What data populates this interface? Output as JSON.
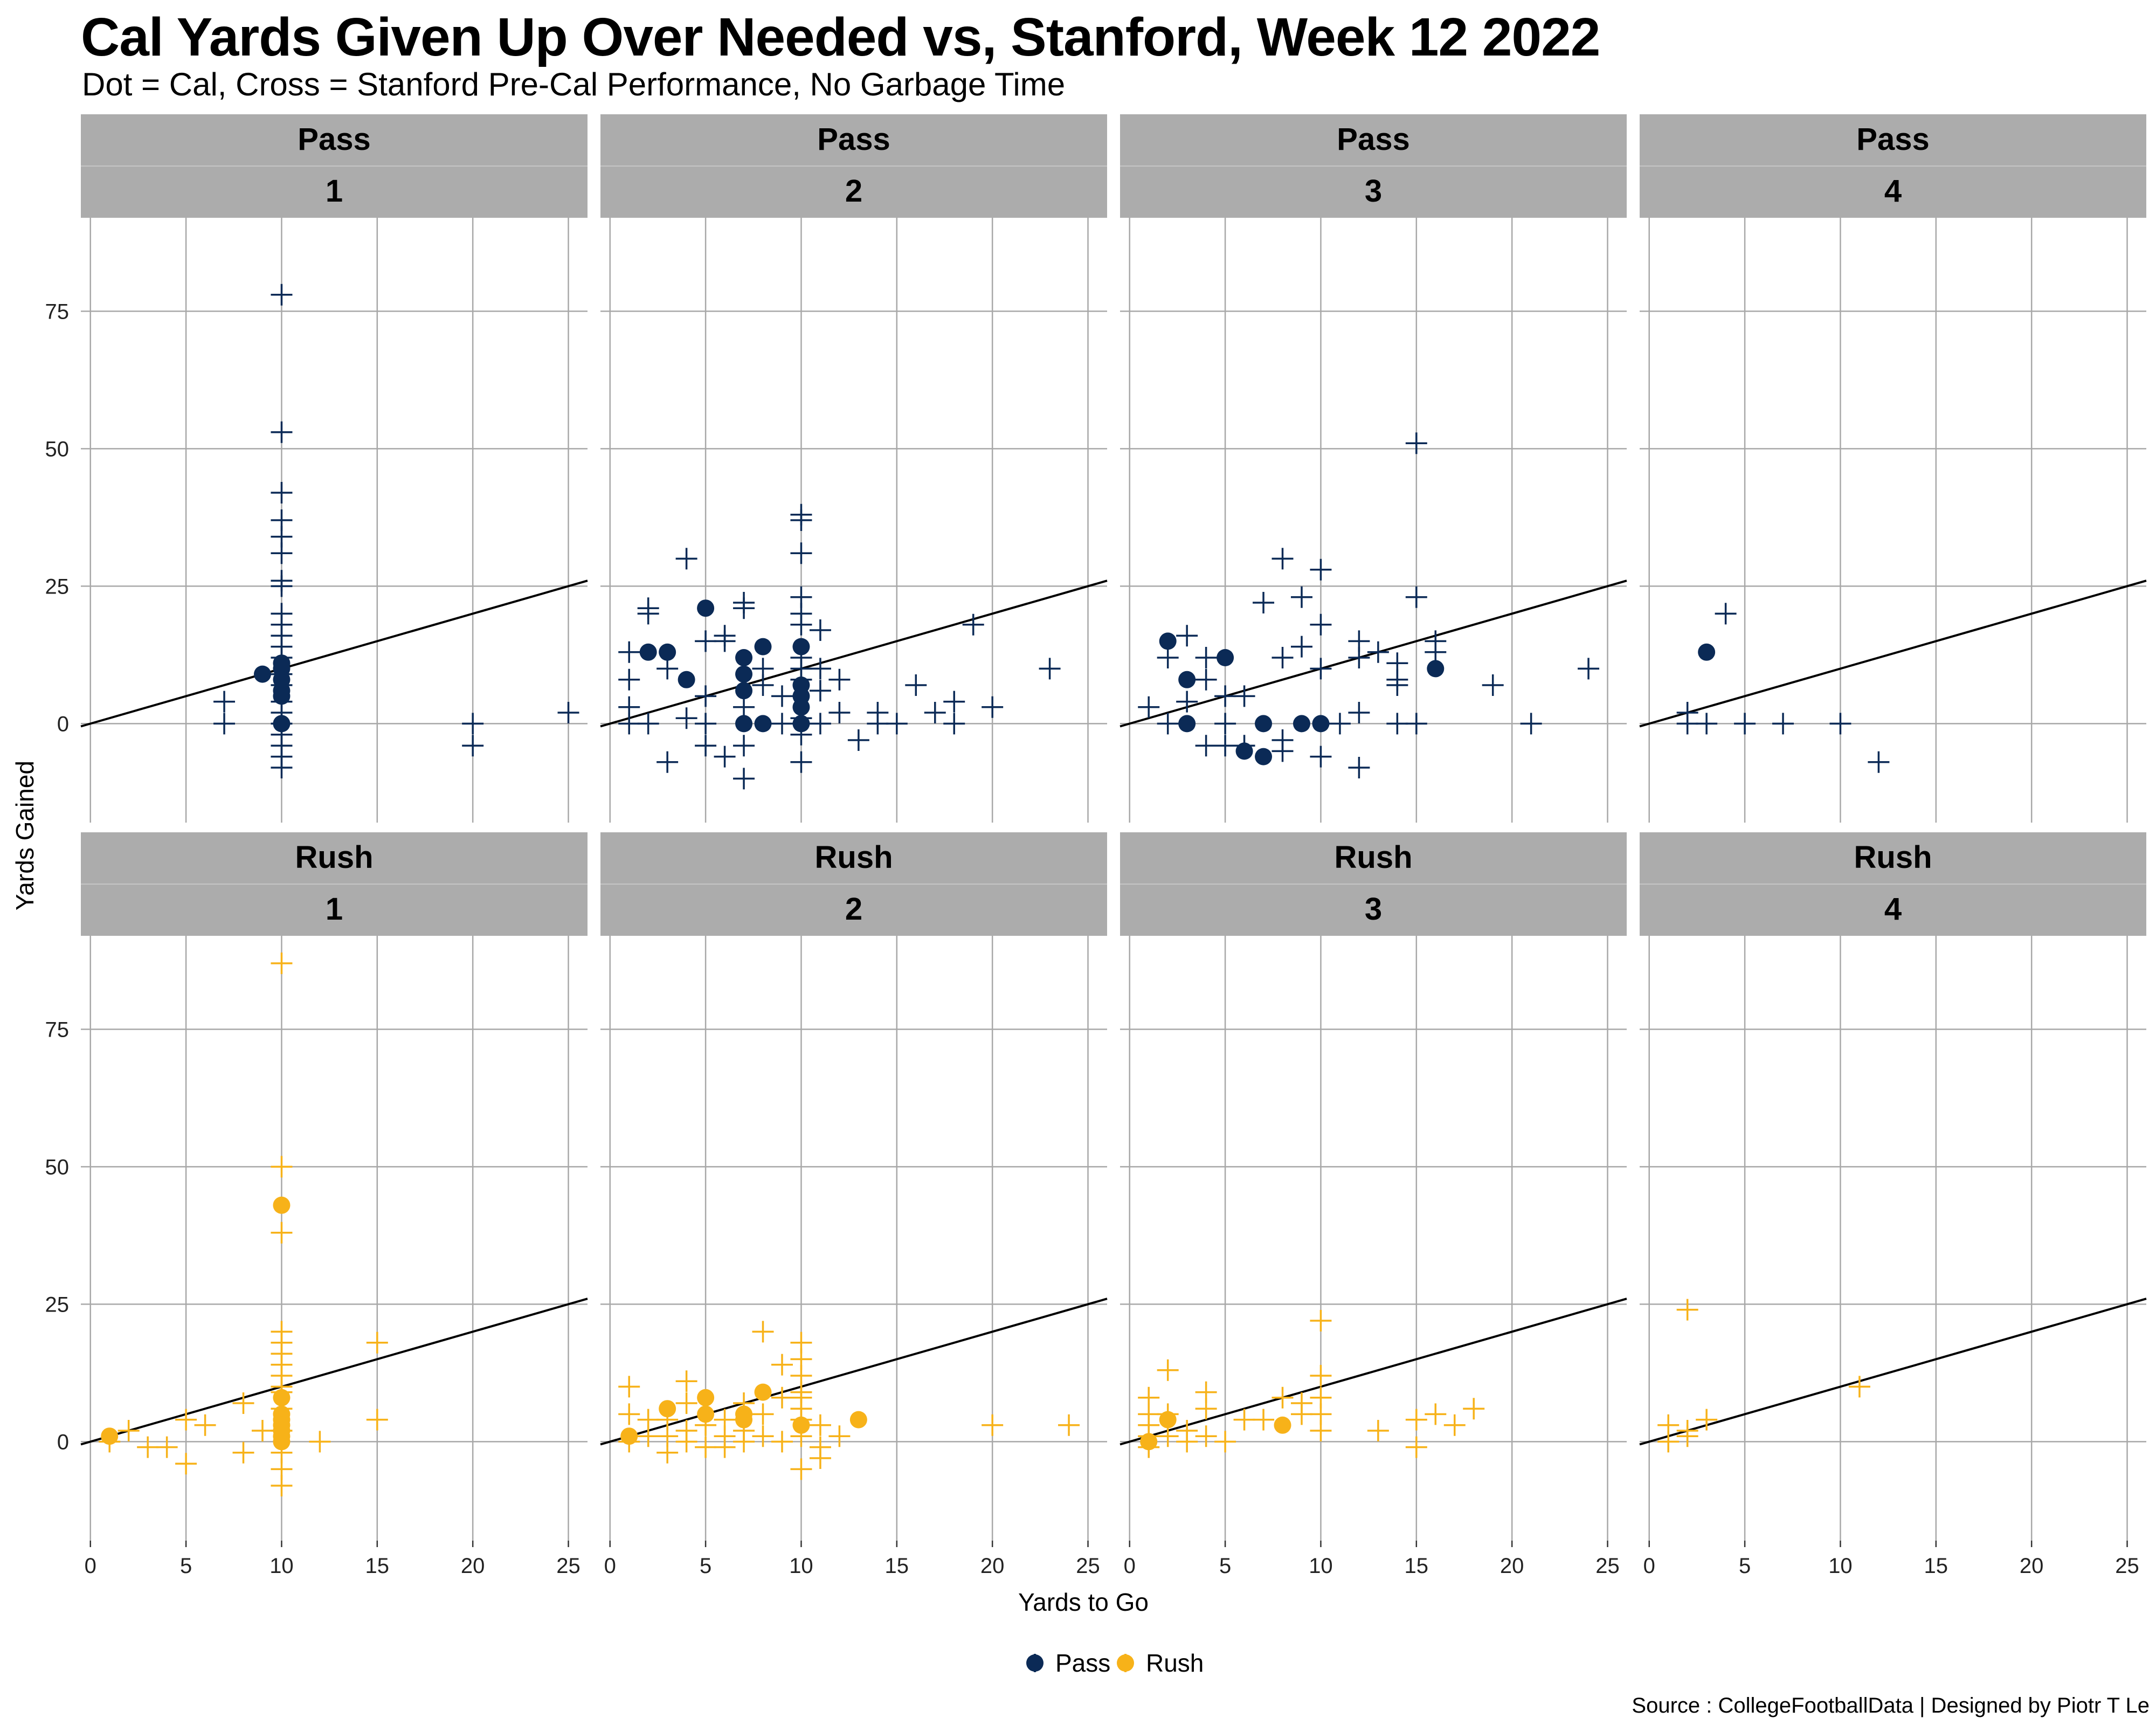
{
  "title": "Cal Yards Given Up Over Needed vs, Stanford, Week 12 2022",
  "subtitle": "Dot = Cal, Cross = Stanford Pre-Cal Performance, No Garbage Time",
  "source": "Source : CollegeFootballData | Designed by Piotr T Le",
  "colors": {
    "pass": "#0b2a56",
    "rush": "#f7b219",
    "strip": "#acacac",
    "grid": "#a8a8a8",
    "refline": "#000000"
  },
  "chart_data": {
    "type": "scatter",
    "facets": [
      "play type",
      "down"
    ],
    "xlabel": "Yards to Go",
    "ylabel": "Yards Gained",
    "xlim": [
      -0.5,
      26
    ],
    "ylim": [
      -18,
      92
    ],
    "xticks": [
      0,
      5,
      10,
      15,
      20,
      25
    ],
    "yticks": [
      0,
      25,
      50,
      75
    ],
    "reference_line": "y = x",
    "legend": {
      "position": "bottom",
      "items": [
        {
          "key": "pass",
          "label": "Pass"
        },
        {
          "key": "rush",
          "label": "Rush"
        }
      ]
    },
    "panels": [
      {
        "type": "Pass",
        "key": "pass",
        "down": "1",
        "cal": [
          [
            9,
            9
          ],
          [
            10,
            11
          ],
          [
            10,
            10
          ],
          [
            10,
            8
          ],
          [
            10,
            6
          ],
          [
            10,
            5
          ],
          [
            10,
            0
          ]
        ],
        "stanford": [
          [
            7,
            4
          ],
          [
            7,
            0
          ],
          [
            10,
            78
          ],
          [
            10,
            53
          ],
          [
            10,
            42
          ],
          [
            10,
            37
          ],
          [
            10,
            34
          ],
          [
            10,
            31
          ],
          [
            10,
            26
          ],
          [
            10,
            25
          ],
          [
            10,
            20
          ],
          [
            10,
            18
          ],
          [
            10,
            16
          ],
          [
            10,
            14
          ],
          [
            10,
            12
          ],
          [
            10,
            9
          ],
          [
            10,
            7
          ],
          [
            10,
            4
          ],
          [
            10,
            2
          ],
          [
            10,
            0
          ],
          [
            10,
            -2
          ],
          [
            10,
            -4
          ],
          [
            10,
            -6
          ],
          [
            10,
            -8
          ],
          [
            20,
            0
          ],
          [
            20,
            -4
          ],
          [
            25,
            2
          ]
        ]
      },
      {
        "type": "Pass",
        "key": "pass",
        "down": "2",
        "cal": [
          [
            2,
            13
          ],
          [
            3,
            13
          ],
          [
            4,
            8
          ],
          [
            5,
            21
          ],
          [
            7,
            12
          ],
          [
            7,
            9
          ],
          [
            7,
            6
          ],
          [
            7,
            0
          ],
          [
            8,
            14
          ],
          [
            8,
            0
          ],
          [
            10,
            14
          ],
          [
            10,
            7
          ],
          [
            10,
            5
          ],
          [
            10,
            3
          ],
          [
            10,
            0
          ]
        ],
        "stanford": [
          [
            1,
            13
          ],
          [
            1,
            8
          ],
          [
            1,
            3
          ],
          [
            1,
            0
          ],
          [
            2,
            21
          ],
          [
            2,
            20
          ],
          [
            2,
            0
          ],
          [
            3,
            -7
          ],
          [
            3,
            10
          ],
          [
            4,
            30
          ],
          [
            4,
            1
          ],
          [
            5,
            15
          ],
          [
            5,
            5
          ],
          [
            5,
            0
          ],
          [
            5,
            -4
          ],
          [
            6,
            16
          ],
          [
            6,
            15
          ],
          [
            6,
            -6
          ],
          [
            7,
            22
          ],
          [
            7,
            21
          ],
          [
            7,
            3
          ],
          [
            7,
            -10
          ],
          [
            7,
            -4
          ],
          [
            8,
            10
          ],
          [
            8,
            7
          ],
          [
            9,
            5
          ],
          [
            9,
            0
          ],
          [
            10,
            38
          ],
          [
            10,
            37
          ],
          [
            10,
            31
          ],
          [
            10,
            23
          ],
          [
            10,
            20
          ],
          [
            10,
            18
          ],
          [
            10,
            12
          ],
          [
            10,
            10
          ],
          [
            10,
            8
          ],
          [
            10,
            1
          ],
          [
            10,
            -2
          ],
          [
            10,
            -7
          ],
          [
            11,
            17
          ],
          [
            11,
            10
          ],
          [
            11,
            6
          ],
          [
            11,
            0
          ],
          [
            12,
            8
          ],
          [
            12,
            2
          ],
          [
            13,
            -3
          ],
          [
            14,
            2
          ],
          [
            14,
            0
          ],
          [
            15,
            0
          ],
          [
            16,
            7
          ],
          [
            17,
            2
          ],
          [
            18,
            4
          ],
          [
            18,
            0
          ],
          [
            19,
            18
          ],
          [
            20,
            3
          ],
          [
            23,
            10
          ]
        ]
      },
      {
        "type": "Pass",
        "key": "pass",
        "down": "3",
        "cal": [
          [
            2,
            15
          ],
          [
            3,
            8
          ],
          [
            3,
            0
          ],
          [
            5,
            12
          ],
          [
            6,
            -5
          ],
          [
            7,
            0
          ],
          [
            7,
            -6
          ],
          [
            9,
            0
          ],
          [
            10,
            0
          ],
          [
            16,
            10
          ]
        ],
        "stanford": [
          [
            1,
            3
          ],
          [
            2,
            12
          ],
          [
            2,
            0
          ],
          [
            3,
            16
          ],
          [
            3,
            4
          ],
          [
            4,
            12
          ],
          [
            4,
            8
          ],
          [
            4,
            -4
          ],
          [
            5,
            5
          ],
          [
            5,
            0
          ],
          [
            5,
            -4
          ],
          [
            6,
            5
          ],
          [
            6,
            -4
          ],
          [
            7,
            22
          ],
          [
            8,
            30
          ],
          [
            8,
            12
          ],
          [
            8,
            -3
          ],
          [
            8,
            -5
          ],
          [
            9,
            23
          ],
          [
            9,
            14
          ],
          [
            10,
            28
          ],
          [
            10,
            18
          ],
          [
            10,
            10
          ],
          [
            10,
            -6
          ],
          [
            11,
            0
          ],
          [
            12,
            15
          ],
          [
            12,
            12
          ],
          [
            12,
            2
          ],
          [
            12,
            -8
          ],
          [
            13,
            13
          ],
          [
            14,
            11
          ],
          [
            14,
            8
          ],
          [
            14,
            7
          ],
          [
            14,
            0
          ],
          [
            15,
            51
          ],
          [
            15,
            23
          ],
          [
            15,
            0
          ],
          [
            16,
            15
          ],
          [
            16,
            13
          ],
          [
            19,
            7
          ],
          [
            21,
            0
          ],
          [
            24,
            10
          ]
        ]
      },
      {
        "type": "Pass",
        "key": "pass",
        "down": "4",
        "cal": [
          [
            3,
            13
          ]
        ],
        "stanford": [
          [
            2,
            2
          ],
          [
            2,
            0
          ],
          [
            3,
            0
          ],
          [
            4,
            20
          ],
          [
            5,
            0
          ],
          [
            7,
            0
          ],
          [
            10,
            0
          ],
          [
            12,
            -7
          ]
        ]
      },
      {
        "type": "Rush",
        "key": "rush",
        "down": "1",
        "cal": [
          [
            1,
            1
          ],
          [
            10,
            43
          ],
          [
            10,
            8
          ],
          [
            10,
            5
          ],
          [
            10,
            4
          ],
          [
            10,
            3
          ],
          [
            10,
            2
          ],
          [
            10,
            1
          ],
          [
            10,
            0
          ]
        ],
        "stanford": [
          [
            1,
            0
          ],
          [
            2,
            2
          ],
          [
            3,
            -1
          ],
          [
            4,
            -1
          ],
          [
            5,
            -4
          ],
          [
            5,
            4
          ],
          [
            6,
            3
          ],
          [
            8,
            7
          ],
          [
            8,
            -2
          ],
          [
            9,
            2
          ],
          [
            10,
            87
          ],
          [
            10,
            50
          ],
          [
            10,
            38
          ],
          [
            10,
            20
          ],
          [
            10,
            18
          ],
          [
            10,
            16
          ],
          [
            10,
            14
          ],
          [
            10,
            12
          ],
          [
            10,
            10
          ],
          [
            10,
            9
          ],
          [
            10,
            6
          ],
          [
            10,
            2
          ],
          [
            10,
            -2
          ],
          [
            10,
            -5
          ],
          [
            10,
            -8
          ],
          [
            12,
            0
          ],
          [
            15,
            18
          ],
          [
            15,
            4
          ]
        ]
      },
      {
        "type": "Rush",
        "key": "rush",
        "down": "2",
        "cal": [
          [
            1,
            1
          ],
          [
            3,
            6
          ],
          [
            5,
            8
          ],
          [
            5,
            5
          ],
          [
            7,
            5
          ],
          [
            7,
            4
          ],
          [
            8,
            9
          ],
          [
            10,
            3
          ],
          [
            13,
            4
          ]
        ],
        "stanford": [
          [
            1,
            10
          ],
          [
            1,
            5
          ],
          [
            1,
            0
          ],
          [
            2,
            4
          ],
          [
            2,
            1
          ],
          [
            3,
            4
          ],
          [
            3,
            -2
          ],
          [
            3,
            1
          ],
          [
            4,
            11
          ],
          [
            4,
            7
          ],
          [
            4,
            2
          ],
          [
            4,
            0
          ],
          [
            5,
            3
          ],
          [
            5,
            -1
          ],
          [
            6,
            4
          ],
          [
            6,
            1
          ],
          [
            6,
            -1
          ],
          [
            7,
            7
          ],
          [
            7,
            2
          ],
          [
            7,
            0
          ],
          [
            8,
            20
          ],
          [
            8,
            5
          ],
          [
            8,
            1
          ],
          [
            9,
            14
          ],
          [
            9,
            8
          ],
          [
            9,
            0
          ],
          [
            10,
            18
          ],
          [
            10,
            15
          ],
          [
            10,
            12
          ],
          [
            10,
            9
          ],
          [
            10,
            8
          ],
          [
            10,
            6
          ],
          [
            10,
            4
          ],
          [
            10,
            1
          ],
          [
            10,
            -5
          ],
          [
            11,
            3
          ],
          [
            11,
            -1
          ],
          [
            11,
            -3
          ],
          [
            12,
            1
          ],
          [
            20,
            3
          ],
          [
            24,
            3
          ]
        ]
      },
      {
        "type": "Rush",
        "key": "rush",
        "down": "3",
        "cal": [
          [
            1,
            0
          ],
          [
            2,
            4
          ],
          [
            8,
            3
          ]
        ],
        "stanford": [
          [
            1,
            8
          ],
          [
            1,
            5
          ],
          [
            1,
            3
          ],
          [
            1,
            1
          ],
          [
            1,
            -1
          ],
          [
            2,
            13
          ],
          [
            2,
            5
          ],
          [
            2,
            1
          ],
          [
            3,
            2
          ],
          [
            3,
            0
          ],
          [
            4,
            9
          ],
          [
            4,
            6
          ],
          [
            4,
            1
          ],
          [
            5,
            0
          ],
          [
            6,
            4
          ],
          [
            7,
            4
          ],
          [
            8,
            8
          ],
          [
            9,
            7
          ],
          [
            9,
            5
          ],
          [
            10,
            22
          ],
          [
            10,
            12
          ],
          [
            10,
            8
          ],
          [
            10,
            5
          ],
          [
            10,
            2
          ],
          [
            13,
            2
          ],
          [
            15,
            4
          ],
          [
            15,
            -1
          ],
          [
            16,
            5
          ],
          [
            17,
            3
          ],
          [
            18,
            6
          ]
        ]
      },
      {
        "type": "Rush",
        "key": "rush",
        "down": "4",
        "cal": [],
        "stanford": [
          [
            1,
            3
          ],
          [
            1,
            0
          ],
          [
            2,
            24
          ],
          [
            2,
            2
          ],
          [
            2,
            1
          ],
          [
            3,
            4
          ],
          [
            11,
            10
          ]
        ]
      }
    ]
  }
}
